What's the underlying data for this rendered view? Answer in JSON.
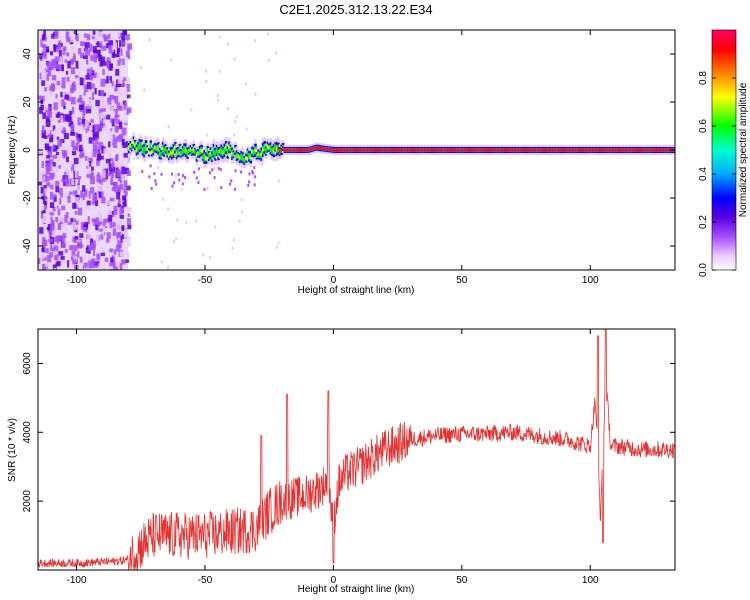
{
  "title": "C2E1.2025.312.13.22.E34",
  "chart_data": [
    {
      "type": "heatmap",
      "xlabel": "Height of straight line (km)",
      "ylabel": "Frequency (Hz)",
      "xlim": [
        -115,
        133
      ],
      "ylim": [
        -50,
        50
      ],
      "x_ticks": [
        -100,
        -50,
        0,
        50,
        100
      ],
      "y_ticks": [
        -40,
        -20,
        0,
        20,
        40
      ],
      "x_tick_labels": [
        "-100",
        "-50",
        "0",
        "50",
        "100"
      ],
      "y_tick_labels": [
        "-40",
        "-20",
        "0",
        "20",
        "40"
      ],
      "colorbar": {
        "label": "Normalized spectral amplitude",
        "range": [
          0,
          1
        ],
        "ticks": [
          0.0,
          0.2,
          0.4,
          0.6,
          0.8
        ],
        "tick_labels": [
          "0.0",
          "0.2",
          "0.4",
          "0.6",
          "0.8"
        ],
        "colormap": [
          "#ffffff",
          "#e8c8ff",
          "#a64dff",
          "#5a00e0",
          "#0000ff",
          "#00aaff",
          "#00ffcc",
          "#00ff00",
          "#ffff00",
          "#ff8000",
          "#ff0000",
          "#ff0066"
        ]
      },
      "noise_region_x": [
        -115,
        -80
      ],
      "ridge": {
        "x": [
          -80,
          -75,
          -70,
          -65,
          -60,
          -55,
          -50,
          -45,
          -40,
          -35,
          -30,
          -25,
          -20,
          -10,
          -7,
          0,
          20,
          50,
          60,
          70,
          80,
          90,
          100,
          104,
          110,
          133
        ],
        "freq": [
          2,
          1,
          0,
          -1,
          0,
          -1,
          -2,
          -1,
          0,
          -3,
          -1,
          0,
          0,
          0,
          1,
          0,
          0,
          0,
          0,
          0,
          0,
          0,
          0,
          0,
          0,
          0
        ]
      }
    },
    {
      "type": "line",
      "xlabel": "Height of straight line (km)",
      "ylabel": "SNR (10 * v/v)",
      "xlim": [
        -115,
        133
      ],
      "ylim": [
        0,
        7000
      ],
      "x_ticks": [
        -100,
        -50,
        0,
        50,
        100
      ],
      "y_ticks": [
        2000,
        4000,
        6000
      ],
      "x_tick_labels": [
        "-100",
        "-50",
        "0",
        "50",
        "100"
      ],
      "y_tick_labels": [
        "2000",
        "4000",
        "6000"
      ],
      "color": "#e83030",
      "series": [
        {
          "x": [
            -115,
            -100,
            -85,
            -80,
            -75,
            -70,
            -60,
            -50,
            -40,
            -30,
            -25,
            -20,
            -15,
            -10,
            -5,
            -2,
            0,
            2,
            5,
            10,
            20,
            30,
            40,
            50,
            60,
            70,
            80,
            90,
            95,
            100,
            102,
            104,
            106,
            108,
            110,
            120,
            133
          ],
          "values": [
            200,
            200,
            250,
            300,
            700,
            1000,
            1000,
            1000,
            1100,
            1200,
            1700,
            2000,
            2100,
            2200,
            2400,
            2600,
            1300,
            2500,
            2800,
            3000,
            3500,
            3800,
            3900,
            3950,
            3950,
            4000,
            3900,
            3800,
            3700,
            3600,
            5000,
            1500,
            5500,
            3600,
            3600,
            3500,
            3500
          ]
        }
      ],
      "spikes": [
        {
          "x": -28,
          "y": 3900
        },
        {
          "x": -18,
          "y": 5100
        },
        {
          "x": -2,
          "y": 5200
        },
        {
          "x": 0,
          "y": 200
        },
        {
          "x": 103,
          "y": 6800
        },
        {
          "x": 106,
          "y": 7000
        },
        {
          "x": 105,
          "y": 800
        }
      ]
    }
  ]
}
